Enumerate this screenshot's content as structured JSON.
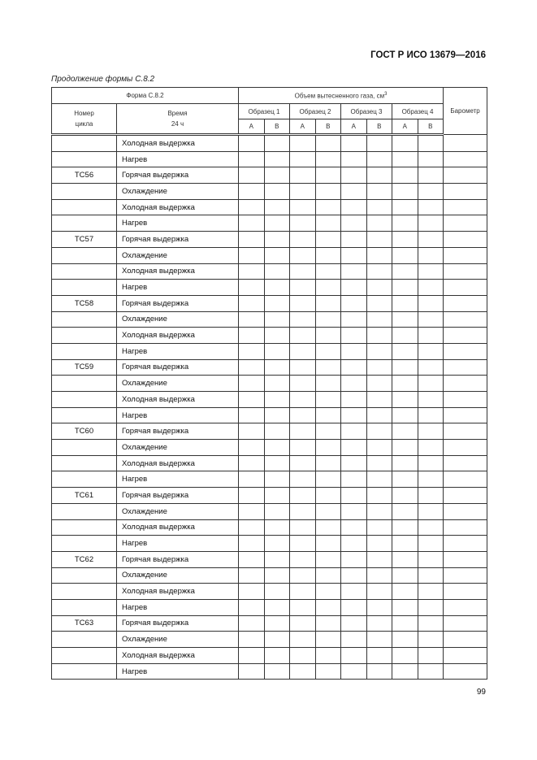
{
  "header": {
    "doc_title": "ГОСТ Р ИСО 13679—2016"
  },
  "caption": "Продолжение формы С.8.2",
  "table": {
    "form_label": "Форма С.8.2",
    "volume_label": "Объем вытесненного газа, см",
    "volume_sup": "3",
    "cycle_label": "Номер цикла",
    "time_label": "Время",
    "time_sub": "24 ч",
    "barometer_label": "Барометр",
    "samples": [
      "Образец 1",
      "Образец 2",
      "Образец 3",
      "Образец 4"
    ],
    "sub_cols": [
      "А",
      "В"
    ],
    "rows": [
      {
        "cycle": "",
        "time": "Холодная выдержка"
      },
      {
        "cycle": "",
        "time": "Нагрев"
      },
      {
        "cycle": "ТС56",
        "time": "Горячая выдержка"
      },
      {
        "cycle": "",
        "time": "Охлаждение"
      },
      {
        "cycle": "",
        "time": "Холодная выдержка"
      },
      {
        "cycle": "",
        "time": "Нагрев"
      },
      {
        "cycle": "ТС57",
        "time": "Горячая выдержка"
      },
      {
        "cycle": "",
        "time": "Охлаждение"
      },
      {
        "cycle": "",
        "time": "Холодная выдержка"
      },
      {
        "cycle": "",
        "time": "Нагрев"
      },
      {
        "cycle": "ТС58",
        "time": "Горячая выдержка"
      },
      {
        "cycle": "",
        "time": "Охлаждение"
      },
      {
        "cycle": "",
        "time": "Холодная выдержка"
      },
      {
        "cycle": "",
        "time": "Нагрев"
      },
      {
        "cycle": "ТС59",
        "time": "Горячая выдержка"
      },
      {
        "cycle": "",
        "time": "Охлаждение"
      },
      {
        "cycle": "",
        "time": "Холодная выдержка"
      },
      {
        "cycle": "",
        "time": "Нагрев"
      },
      {
        "cycle": "ТС60",
        "time": "Горячая выдержка"
      },
      {
        "cycle": "",
        "time": "Охлаждение"
      },
      {
        "cycle": "",
        "time": "Холодная выдержка"
      },
      {
        "cycle": "",
        "time": "Нагрев"
      },
      {
        "cycle": "ТС61",
        "time": "Горячая выдержка"
      },
      {
        "cycle": "",
        "time": "Охлаждение"
      },
      {
        "cycle": "",
        "time": "Холодная выдержка"
      },
      {
        "cycle": "",
        "time": "Нагрев"
      },
      {
        "cycle": "ТС62",
        "time": "Горячая выдержка"
      },
      {
        "cycle": "",
        "time": "Охлаждение"
      },
      {
        "cycle": "",
        "time": "Холодная выдержка"
      },
      {
        "cycle": "",
        "time": "Нагрев"
      },
      {
        "cycle": "ТС63",
        "time": "Горячая выдержка"
      },
      {
        "cycle": "",
        "time": "Охлаждение"
      },
      {
        "cycle": "",
        "time": "Холодная выдержка"
      },
      {
        "cycle": "",
        "time": "Нагрев"
      }
    ]
  },
  "footer": {
    "page_number": "99"
  }
}
